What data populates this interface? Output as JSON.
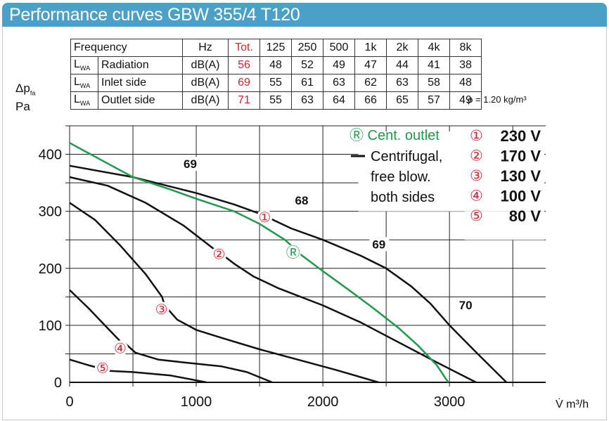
{
  "title": "Performance curves GBW 355/4 T120",
  "table": {
    "header": {
      "label": "Frequency",
      "unit": "Hz",
      "total": "Tot.",
      "bands": [
        "125",
        "250",
        "500",
        "1k",
        "2k",
        "4k",
        "8k"
      ]
    },
    "rows": [
      {
        "sym": "L",
        "sub": "WA",
        "label": "Radiation",
        "unit": "dB(A)",
        "total": "56",
        "values": [
          "48",
          "52",
          "49",
          "47",
          "44",
          "41",
          "38"
        ]
      },
      {
        "sym": "L",
        "sub": "WA",
        "label": "Inlet side",
        "unit": "dB(A)",
        "total": "69",
        "values": [
          "55",
          "61",
          "63",
          "62",
          "63",
          "58",
          "48"
        ]
      },
      {
        "sym": "L",
        "sub": "WA",
        "label": "Outlet side",
        "unit": "dB(A)",
        "total": "71",
        "values": [
          "55",
          "63",
          "64",
          "66",
          "65",
          "57",
          "49"
        ]
      }
    ]
  },
  "density": "ρ = 1.20 kg/m³",
  "colors": {
    "header": "#4aa0c6",
    "red": "#d8222e",
    "green": "#1e9a4a",
    "black": "#111111"
  },
  "chart_data": {
    "type": "line",
    "title": "Performance curves GBW 355/4 T120",
    "ylabel_main": "Δp",
    "ylabel_sub": "fa",
    "ylabel_unit": "Pa",
    "xlabel": "V̇  m³/h",
    "xlim": [
      0,
      3760
    ],
    "ylim": [
      0,
      450
    ],
    "grid": true,
    "xticks": [
      0,
      1000,
      2000,
      3000
    ],
    "xtick_labels": [
      "0",
      "1000",
      "2000",
      "3000"
    ],
    "yticks": [
      0,
      100,
      200,
      300,
      400
    ],
    "ytick_labels": [
      "0",
      "100",
      "200",
      "300",
      "400"
    ],
    "series": [
      {
        "name": "230 V",
        "marker": "①",
        "color": "black",
        "points": [
          [
            0,
            380
          ],
          [
            500,
            360
          ],
          [
            1000,
            332
          ],
          [
            1300,
            312
          ],
          [
            1500,
            296
          ],
          [
            1560,
            290
          ],
          [
            1750,
            270
          ],
          [
            2000,
            250
          ],
          [
            2300,
            222
          ],
          [
            2500,
            200
          ],
          [
            2700,
            168
          ],
          [
            2850,
            138
          ],
          [
            3000,
            100
          ],
          [
            3200,
            55
          ],
          [
            3450,
            0
          ]
        ],
        "label_at": [
          1540,
          290
        ]
      },
      {
        "name": "170 V",
        "marker": "②",
        "color": "black",
        "points": [
          [
            0,
            360
          ],
          [
            300,
            345
          ],
          [
            600,
            315
          ],
          [
            900,
            275
          ],
          [
            1150,
            232
          ],
          [
            1200,
            225
          ],
          [
            1300,
            208
          ],
          [
            1450,
            186
          ],
          [
            1650,
            165
          ],
          [
            2000,
            135
          ],
          [
            2300,
            105
          ],
          [
            2600,
            70
          ],
          [
            2900,
            35
          ],
          [
            3210,
            0
          ]
        ],
        "label_at": [
          1180,
          225
        ]
      },
      {
        "name": "130 V",
        "marker": "③",
        "color": "black",
        "points": [
          [
            0,
            315
          ],
          [
            200,
            285
          ],
          [
            400,
            240
          ],
          [
            600,
            190
          ],
          [
            730,
            150
          ],
          [
            750,
            135
          ],
          [
            850,
            110
          ],
          [
            1000,
            92
          ],
          [
            1200,
            78
          ],
          [
            1500,
            58
          ],
          [
            1800,
            40
          ],
          [
            2100,
            22
          ],
          [
            2440,
            0
          ]
        ],
        "label_at": [
          725,
          128
        ]
      },
      {
        "name": "100 V",
        "marker": "④",
        "color": "black",
        "points": [
          [
            0,
            162
          ],
          [
            150,
            130
          ],
          [
            300,
            95
          ],
          [
            400,
            72
          ],
          [
            430,
            70
          ],
          [
            520,
            52
          ],
          [
            700,
            40
          ],
          [
            900,
            35
          ],
          [
            1200,
            28
          ],
          [
            1400,
            18
          ],
          [
            1600,
            0
          ]
        ],
        "label_at": [
          400,
          60
        ]
      },
      {
        "name": "80 V",
        "marker": "⑤",
        "color": "black",
        "points": [
          [
            0,
            40
          ],
          [
            150,
            30
          ],
          [
            250,
            24
          ],
          [
            320,
            20
          ],
          [
            500,
            18
          ],
          [
            800,
            12
          ],
          [
            1080,
            0
          ]
        ],
        "label_at": [
          260,
          25
        ]
      },
      {
        "name": "Cent. outlet",
        "marker": "Ⓡ",
        "color": "green",
        "points": [
          [
            0,
            420
          ],
          [
            250,
            390
          ],
          [
            500,
            360
          ],
          [
            800,
            338
          ],
          [
            1000,
            322
          ],
          [
            1300,
            300
          ],
          [
            1500,
            278
          ],
          [
            1700,
            250
          ],
          [
            1750,
            240
          ],
          [
            1820,
            225
          ],
          [
            2000,
            195
          ],
          [
            2200,
            163
          ],
          [
            2400,
            130
          ],
          [
            2600,
            95
          ],
          [
            2750,
            65
          ],
          [
            2900,
            30
          ],
          [
            2990,
            0
          ]
        ],
        "label_at": [
          1765,
          228
        ]
      }
    ],
    "annotations": [
      {
        "text": "69",
        "x": 900,
        "y": 376
      },
      {
        "text": "68",
        "x": 1780,
        "y": 312
      },
      {
        "text": "69",
        "x": 2390,
        "y": 235
      },
      {
        "text": "70",
        "x": 3075,
        "y": 128
      }
    ],
    "legend": {
      "position": "top-right",
      "green_text": "Ⓡ Cent. outlet",
      "black_text": [
        "Centrifugal,",
        "free blow.",
        "both sides"
      ],
      "voltages": [
        {
          "marker": "①",
          "label": "230 V"
        },
        {
          "marker": "②",
          "label": "170 V"
        },
        {
          "marker": "③",
          "label": "130 V"
        },
        {
          "marker": "④",
          "label": "100 V"
        },
        {
          "marker": "⑤",
          "label": "80 V"
        }
      ]
    }
  }
}
